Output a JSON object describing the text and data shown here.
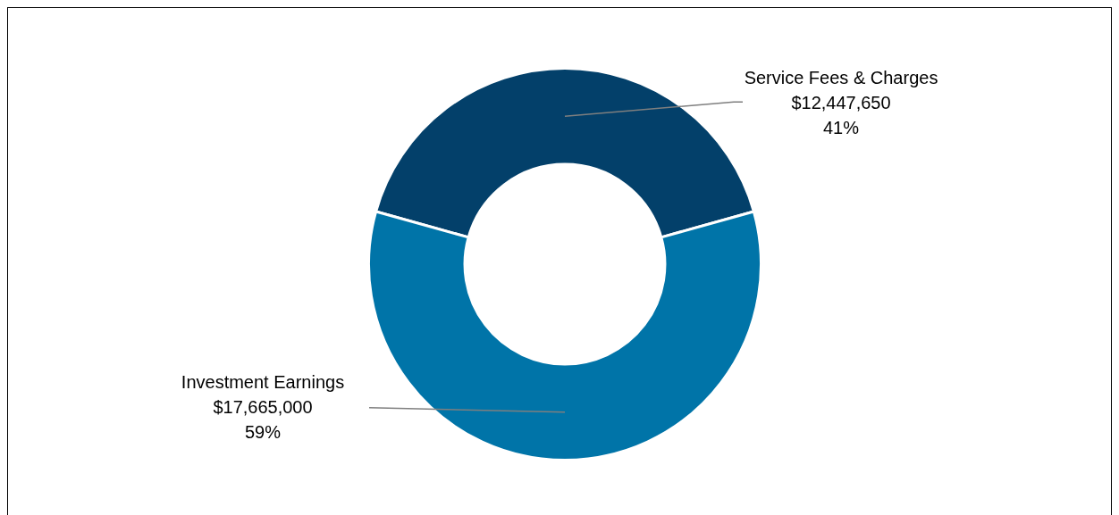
{
  "chart_data": {
    "type": "donut",
    "categories": [
      "Service Fees & Charges",
      "Investment Earnings"
    ],
    "values": [
      12447650,
      17665000
    ],
    "colors": [
      "#03406a",
      "#0074a8"
    ],
    "value_labels": [
      "$12,447,650\n41%",
      "$17,665,000\n59%"
    ],
    "legend": false
  }
}
